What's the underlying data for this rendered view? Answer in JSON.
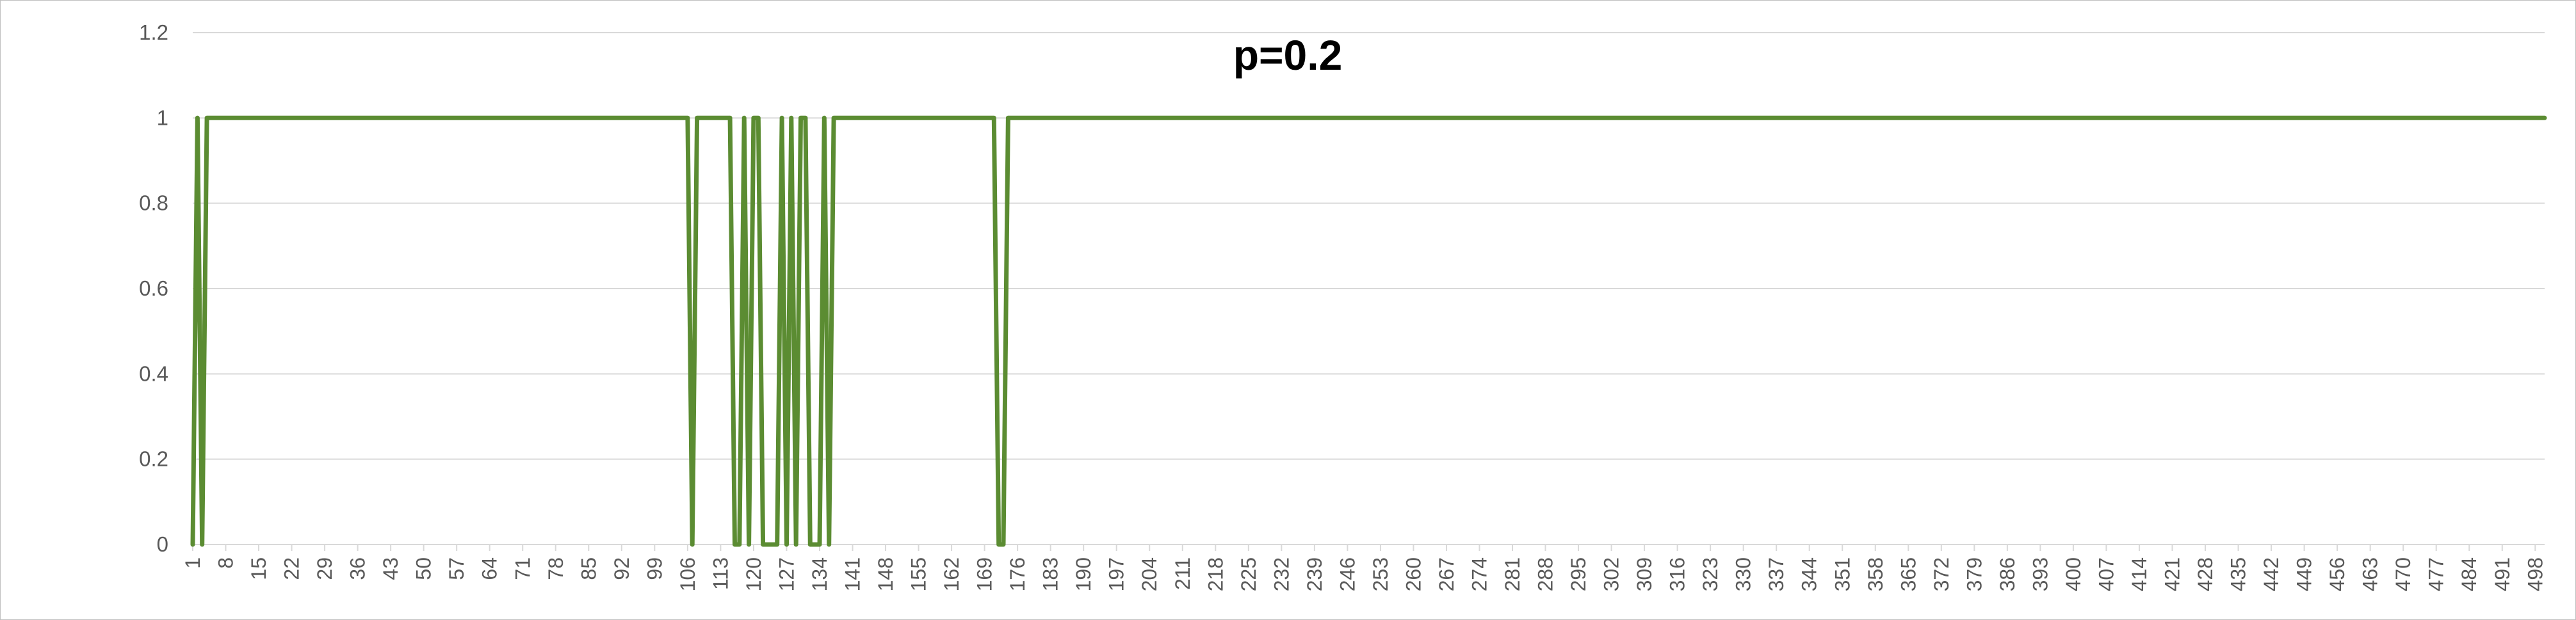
{
  "chart_data": {
    "type": "line",
    "title": "p=0.2",
    "xlabel": "",
    "ylabel": "",
    "x_range": [
      1,
      500
    ],
    "x_tick_labels": [
      1,
      8,
      15,
      22,
      29,
      36,
      43,
      50,
      57,
      64,
      71,
      78,
      85,
      92,
      99,
      106,
      113,
      120,
      127,
      134,
      141,
      148,
      155,
      162,
      169,
      176,
      183,
      190,
      197,
      204,
      211,
      218,
      225,
      232,
      239,
      246,
      253,
      260,
      267,
      274,
      281,
      288,
      295,
      302,
      309,
      316,
      323,
      330,
      337,
      344,
      351,
      358,
      365,
      372,
      379,
      386,
      393,
      400,
      407,
      414,
      421,
      428,
      435,
      442,
      449,
      456,
      463,
      470,
      477,
      484,
      491,
      498
    ],
    "ylim": [
      0,
      1.2
    ],
    "y_ticks": [
      0,
      0.2,
      0.4,
      0.6,
      0.8,
      1,
      1.2
    ],
    "y_tick_labels": [
      "0",
      "0.2",
      "0.4",
      "0.6",
      "0.8",
      "1",
      "1.2"
    ],
    "grid": "horizontal",
    "legend": "none",
    "series": [
      {
        "color": "#5b8c32",
        "points": [
          [
            1,
            0
          ],
          [
            2,
            1
          ],
          [
            3,
            0
          ],
          [
            4,
            1
          ],
          [
            106,
            1
          ],
          [
            107,
            0
          ],
          [
            108,
            1
          ],
          [
            115,
            1
          ],
          [
            116,
            0
          ],
          [
            117,
            0
          ],
          [
            118,
            1
          ],
          [
            119,
            0
          ],
          [
            120,
            1
          ],
          [
            121,
            1
          ],
          [
            122,
            0
          ],
          [
            125,
            0
          ],
          [
            126,
            1
          ],
          [
            127,
            0
          ],
          [
            128,
            1
          ],
          [
            129,
            0
          ],
          [
            130,
            1
          ],
          [
            131,
            1
          ],
          [
            132,
            0
          ],
          [
            134,
            0
          ],
          [
            135,
            1
          ],
          [
            136,
            0
          ],
          [
            137,
            1
          ],
          [
            171,
            1
          ],
          [
            172,
            0
          ],
          [
            173,
            0
          ],
          [
            174,
            1
          ],
          [
            500,
            1
          ]
        ]
      }
    ]
  }
}
